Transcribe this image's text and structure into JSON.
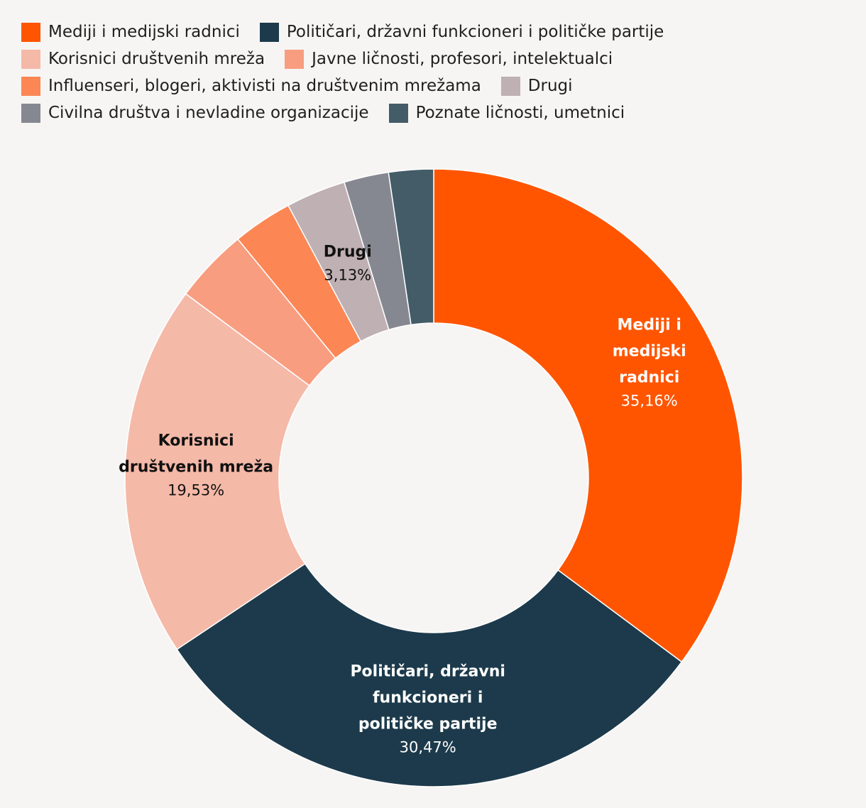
{
  "chart_data": {
    "type": "pie",
    "variant": "donut",
    "title": "",
    "legend_position": "top",
    "categories": [
      "Mediji i medijski radnici",
      "Političari, državni funkcioneri i političke partije",
      "Korisnici društvenih mreža",
      "Javne ličnosti, profesori, intelektualci",
      "Influenseri, blogeri, aktivisti na društvenim mrežama",
      "Drugi",
      "Civilna društva i nevladine organizacije",
      "Poznate ličnosti, umetnici"
    ],
    "values": [
      35.16,
      30.47,
      19.53,
      3.9,
      3.13,
      3.13,
      2.34,
      2.34
    ],
    "colors": [
      "#ff5500",
      "#1c3a4b",
      "#f5b9a8",
      "#f89d80",
      "#fc8654",
      "#bfb0b3",
      "#868891",
      "#445c68"
    ],
    "slice_labels": [
      {
        "index": 0,
        "lines": [
          "Mediji i",
          "medijski",
          "radnici"
        ],
        "value_text": "35,16%",
        "text_color": "#ffffff"
      },
      {
        "index": 1,
        "lines": [
          "Političari, državni",
          "funkcioneri i",
          "političke partije"
        ],
        "value_text": "30,47%",
        "text_color": "#ffffff"
      },
      {
        "index": 2,
        "lines": [
          "Korisnici",
          "društvenih mreža"
        ],
        "value_text": "19,53%",
        "text_color": "#111111"
      },
      {
        "index": 5,
        "lines": [
          "Drugi"
        ],
        "value_text": "3,13%",
        "text_color": "#111111"
      }
    ]
  },
  "legend_rows": [
    [
      0,
      1
    ],
    [
      2,
      3
    ],
    [
      4,
      5
    ],
    [
      6,
      7
    ]
  ]
}
